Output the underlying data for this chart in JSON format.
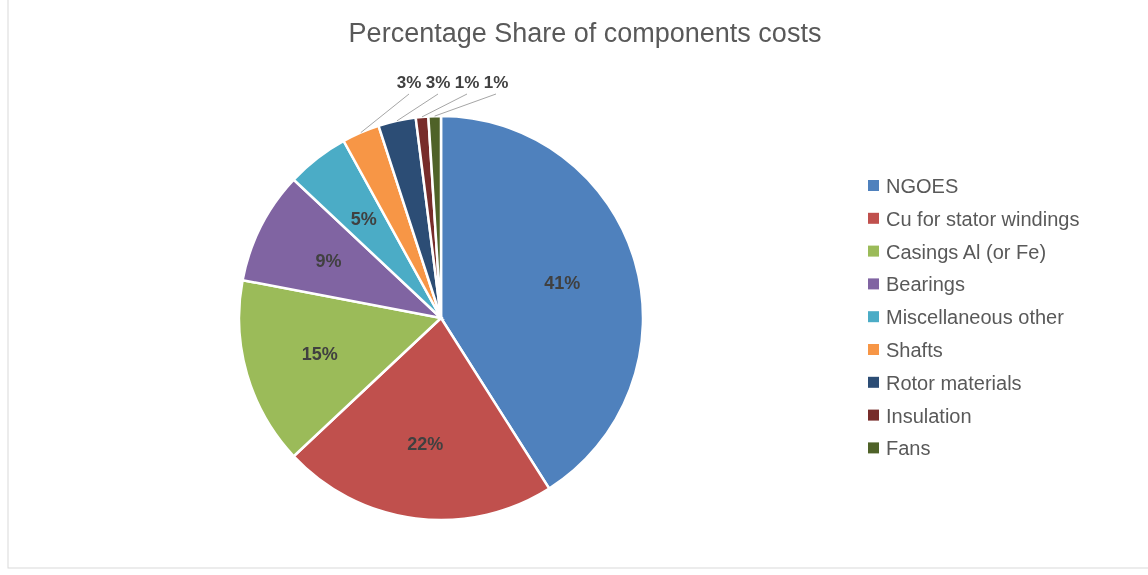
{
  "chart_data": {
    "type": "pie",
    "title": "Percentage Share of components costs",
    "categories": [
      "NGOES",
      "Cu for stator windings",
      "Casings Al (or Fe)",
      "Bearings",
      "Miscellaneous other",
      "Shafts",
      "Rotor materials",
      "Insulation",
      "Fans"
    ],
    "values": [
      41,
      22,
      15,
      9,
      5,
      3,
      3,
      1,
      1
    ],
    "value_labels": [
      "41%",
      "22%",
      "15%",
      "9%",
      "5%",
      "3%",
      "3%",
      "1%",
      "1%"
    ],
    "colors": [
      "#4f81bd",
      "#c0504d",
      "#9bbb59",
      "#8064a2",
      "#4bacc6",
      "#f79646",
      "#2c4d75",
      "#772c2a",
      "#4f6228"
    ],
    "legend": "right"
  }
}
